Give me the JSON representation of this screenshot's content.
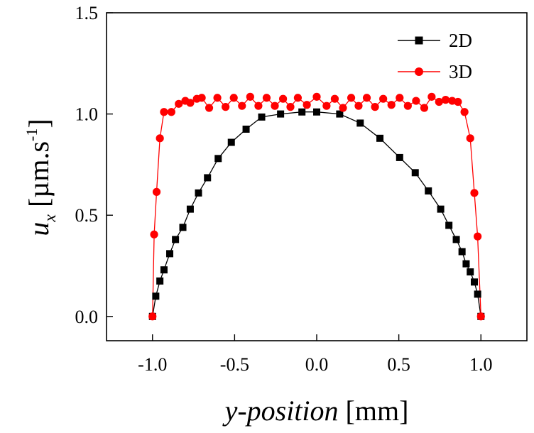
{
  "chart_data": {
    "type": "line",
    "title": "",
    "xlabel_italic": "y-position",
    "xlabel_unit": "[mm]",
    "ylabel_var": "u",
    "ylabel_sub": "x",
    "ylabel_unit_main": "[µm.s",
    "ylabel_unit_sup": "-1",
    "ylabel_unit_end": "]",
    "xlim": [
      -1.28,
      1.28
    ],
    "ylim": [
      -0.12,
      1.5
    ],
    "xticks": [
      -1.0,
      -0.5,
      0.0,
      0.5,
      1.0
    ],
    "xtick_labels": [
      "-1.0",
      "-0.5",
      "0.0",
      "0.5",
      "1.0"
    ],
    "yticks": [
      0.0,
      0.5,
      1.0,
      1.5
    ],
    "ytick_labels": [
      "0.0",
      "0.5",
      "1.0",
      "1.5"
    ],
    "legend_position": "top-right",
    "series": [
      {
        "name": "2D",
        "color": "#000000",
        "marker": "square",
        "x": [
          -1.0,
          -0.98,
          -0.955,
          -0.93,
          -0.895,
          -0.86,
          -0.815,
          -0.77,
          -0.72,
          -0.665,
          -0.6,
          -0.52,
          -0.43,
          -0.335,
          -0.22,
          -0.09,
          0.0,
          0.14,
          0.265,
          0.385,
          0.505,
          0.6,
          0.68,
          0.755,
          0.805,
          0.85,
          0.885,
          0.91,
          0.935,
          0.96,
          0.98,
          1.0
        ],
        "y": [
          0.0,
          0.1,
          0.175,
          0.23,
          0.31,
          0.38,
          0.44,
          0.53,
          0.61,
          0.685,
          0.78,
          0.86,
          0.925,
          0.985,
          1.0,
          1.01,
          1.01,
          1.0,
          0.955,
          0.88,
          0.785,
          0.71,
          0.62,
          0.53,
          0.45,
          0.38,
          0.32,
          0.26,
          0.22,
          0.17,
          0.11,
          0.0
        ]
      },
      {
        "name": "3D",
        "color": "#ff0000",
        "marker": "circle",
        "x": [
          -1.0,
          -0.99,
          -0.975,
          -0.955,
          -0.93,
          -0.885,
          -0.84,
          -0.8,
          -0.77,
          -0.73,
          -0.7,
          -0.655,
          -0.605,
          -0.555,
          -0.505,
          -0.455,
          -0.405,
          -0.355,
          -0.305,
          -0.255,
          -0.205,
          -0.16,
          -0.115,
          -0.06,
          0.0,
          0.06,
          0.11,
          0.16,
          0.21,
          0.255,
          0.305,
          0.355,
          0.405,
          0.455,
          0.505,
          0.555,
          0.605,
          0.655,
          0.7,
          0.745,
          0.785,
          0.825,
          0.86,
          0.9,
          0.935,
          0.96,
          0.98,
          1.0
        ],
        "y": [
          0.0,
          0.405,
          0.615,
          0.88,
          1.01,
          1.01,
          1.05,
          1.065,
          1.055,
          1.075,
          1.08,
          1.03,
          1.08,
          1.035,
          1.08,
          1.04,
          1.085,
          1.04,
          1.08,
          1.04,
          1.075,
          1.035,
          1.08,
          1.045,
          1.085,
          1.04,
          1.075,
          1.03,
          1.08,
          1.04,
          1.08,
          1.035,
          1.075,
          1.045,
          1.08,
          1.04,
          1.065,
          1.03,
          1.085,
          1.06,
          1.07,
          1.065,
          1.06,
          1.01,
          0.88,
          0.61,
          0.395,
          0.0
        ]
      }
    ]
  }
}
